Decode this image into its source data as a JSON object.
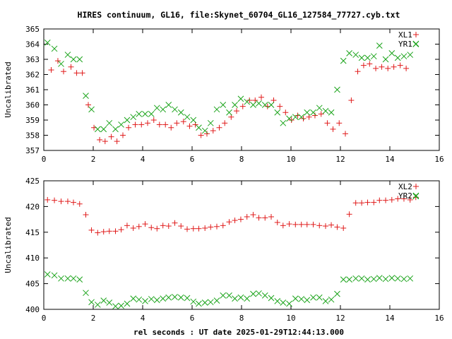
{
  "chart_data": [
    {
      "type": "scatter",
      "title": "HIRES continuum, GL16, file:Skynet_60704_GL16_127584_77727.cyb.txt",
      "ylabel": "Uncalibrated",
      "xlabel": "",
      "xlim": [
        0,
        16
      ],
      "ylim": [
        357,
        365
      ],
      "x_ticks": [
        "0",
        "2",
        "4",
        "6",
        "8",
        "10",
        "12",
        "14",
        "16"
      ],
      "y_ticks": [
        "357",
        "358",
        "359",
        "360",
        "361",
        "362",
        "363",
        "364",
        "365"
      ],
      "legend_position": "top-right",
      "series": [
        {
          "name": "XL1",
          "marker": "plus",
          "color": "#e01b1b",
          "x": [
            0.3,
            0.57,
            0.8,
            1.1,
            1.33,
            1.56,
            1.8,
            2.03,
            2.26,
            2.48,
            2.73,
            2.96,
            3.2,
            3.43,
            3.7,
            3.95,
            4.2,
            4.45,
            4.68,
            4.92,
            5.15,
            5.38,
            5.65,
            5.9,
            6.13,
            6.36,
            6.6,
            6.85,
            7.1,
            7.32,
            7.58,
            7.8,
            8.05,
            8.32,
            8.55,
            8.8,
            9.05,
            9.3,
            9.55,
            9.78,
            10.02,
            10.27,
            10.5,
            10.73,
            10.97,
            11.22,
            11.47,
            11.7,
            11.95,
            12.2,
            12.44,
            12.7,
            12.94,
            13.18,
            13.43,
            13.67,
            13.92,
            14.16,
            14.42,
            14.66
          ],
          "y": [
            362.3,
            362.9,
            362.2,
            362.5,
            362.1,
            362.1,
            360.0,
            358.5,
            357.7,
            357.6,
            357.9,
            357.6,
            358.0,
            358.5,
            358.7,
            358.7,
            358.8,
            359.0,
            358.7,
            358.7,
            358.5,
            358.8,
            358.9,
            358.6,
            358.7,
            358.0,
            358.1,
            358.3,
            358.5,
            358.8,
            359.2,
            359.6,
            359.9,
            360.3,
            360.3,
            360.5,
            359.9,
            360.3,
            359.9,
            359.5,
            359.0,
            359.3,
            359.1,
            359.2,
            359.3,
            359.4,
            358.8,
            358.4,
            358.8,
            358.1,
            360.3,
            362.2,
            362.6,
            362.7,
            362.4,
            362.5,
            362.4,
            362.5,
            362.6,
            362.4
          ]
        },
        {
          "name": "YR1",
          "marker": "cross",
          "color": "#1aa31a",
          "x": [
            0.15,
            0.43,
            0.7,
            0.97,
            1.2,
            1.45,
            1.7,
            1.93,
            2.18,
            2.42,
            2.65,
            2.9,
            3.13,
            3.37,
            3.62,
            3.85,
            4.1,
            4.35,
            4.58,
            4.82,
            5.05,
            5.3,
            5.55,
            5.8,
            6.05,
            6.27,
            6.52,
            6.75,
            7.0,
            7.25,
            7.5,
            7.73,
            7.97,
            8.22,
            8.47,
            8.7,
            8.95,
            9.2,
            9.45,
            9.68,
            9.93,
            10.18,
            10.42,
            10.65,
            10.9,
            11.15,
            11.4,
            11.63,
            11.87,
            12.12,
            12.36,
            12.62,
            12.86,
            13.1,
            13.35,
            13.58,
            13.83,
            14.08,
            14.32,
            14.57,
            14.82,
            15.05
          ],
          "y": [
            364.1,
            363.7,
            362.7,
            363.3,
            363.0,
            363.0,
            360.6,
            359.7,
            358.4,
            358.4,
            358.8,
            358.4,
            358.7,
            359.0,
            359.2,
            359.4,
            359.4,
            359.4,
            359.8,
            359.7,
            360.0,
            359.7,
            359.5,
            359.2,
            359.0,
            358.5,
            358.3,
            358.8,
            359.7,
            360.0,
            359.5,
            360.0,
            360.4,
            360.2,
            360.0,
            360.1,
            360.0,
            360.0,
            359.5,
            358.8,
            359.1,
            359.2,
            359.2,
            359.5,
            359.5,
            359.8,
            359.6,
            359.5,
            361.0,
            362.9,
            363.4,
            363.3,
            363.1,
            363.1,
            363.2,
            363.9,
            363.0,
            363.4,
            363.1,
            363.2,
            363.3,
            364.0
          ]
        }
      ]
    },
    {
      "type": "scatter",
      "title": "",
      "ylabel": "Uncalibrated",
      "xlabel": "rel seconds : UT date 2025-01-29T12:44:13.000",
      "xlim": [
        0,
        16
      ],
      "ylim": [
        400,
        425
      ],
      "x_ticks": [
        "0",
        "2",
        "4",
        "6",
        "8",
        "10",
        "12",
        "14",
        "16"
      ],
      "y_ticks": [
        "400",
        "405",
        "410",
        "415",
        "420",
        "425"
      ],
      "legend_position": "top-right",
      "series": [
        {
          "name": "XL2",
          "marker": "plus",
          "color": "#e01b1b",
          "x": [
            0.15,
            0.43,
            0.7,
            0.97,
            1.2,
            1.45,
            1.7,
            1.93,
            2.18,
            2.42,
            2.65,
            2.9,
            3.13,
            3.37,
            3.62,
            3.85,
            4.1,
            4.35,
            4.58,
            4.82,
            5.05,
            5.3,
            5.55,
            5.8,
            6.05,
            6.27,
            6.52,
            6.75,
            7.0,
            7.25,
            7.5,
            7.73,
            7.97,
            8.22,
            8.47,
            8.7,
            8.95,
            9.2,
            9.45,
            9.68,
            9.93,
            10.18,
            10.42,
            10.65,
            10.9,
            11.15,
            11.4,
            11.63,
            11.87,
            12.12,
            12.36,
            12.62,
            12.86,
            13.1,
            13.35,
            13.58,
            13.83,
            14.08,
            14.32,
            14.57,
            14.82,
            15.05
          ],
          "y": [
            421.3,
            421.2,
            421.0,
            421.0,
            420.8,
            420.5,
            418.4,
            415.4,
            414.9,
            415.1,
            415.2,
            415.2,
            415.5,
            416.3,
            415.8,
            416.1,
            416.6,
            415.9,
            415.7,
            416.3,
            416.2,
            416.8,
            416.2,
            415.6,
            415.7,
            415.7,
            415.8,
            416.0,
            416.1,
            416.3,
            417.0,
            417.3,
            417.5,
            418.0,
            418.4,
            417.8,
            417.8,
            418.0,
            416.9,
            416.3,
            416.6,
            416.5,
            416.5,
            416.5,
            416.5,
            416.3,
            416.2,
            416.4,
            416.0,
            415.8,
            418.5,
            420.7,
            420.7,
            420.8,
            420.8,
            421.2,
            421.2,
            421.3,
            421.5,
            421.5,
            421.3,
            421.8
          ]
        },
        {
          "name": "YR2",
          "marker": "cross",
          "color": "#1aa31a",
          "x": [
            0.15,
            0.43,
            0.7,
            0.97,
            1.2,
            1.45,
            1.7,
            1.93,
            2.18,
            2.42,
            2.65,
            2.9,
            3.13,
            3.37,
            3.62,
            3.85,
            4.1,
            4.35,
            4.58,
            4.82,
            5.05,
            5.3,
            5.55,
            5.8,
            6.05,
            6.27,
            6.52,
            6.75,
            7.0,
            7.25,
            7.5,
            7.73,
            7.97,
            8.22,
            8.47,
            8.7,
            8.95,
            9.2,
            9.45,
            9.68,
            9.93,
            10.18,
            10.42,
            10.65,
            10.9,
            11.15,
            11.4,
            11.63,
            11.87,
            12.12,
            12.36,
            12.62,
            12.86,
            13.1,
            13.35,
            13.58,
            13.83,
            14.08,
            14.32,
            14.57,
            14.82,
            15.05
          ],
          "y": [
            406.8,
            406.6,
            406.0,
            406.0,
            406.0,
            405.8,
            403.2,
            401.4,
            400.9,
            401.7,
            401.3,
            400.6,
            400.7,
            401.1,
            402.1,
            401.9,
            401.6,
            402.0,
            401.8,
            402.1,
            402.3,
            402.4,
            402.3,
            402.2,
            401.5,
            401.1,
            401.3,
            401.4,
            401.7,
            402.7,
            402.7,
            402.1,
            402.3,
            402.1,
            403.0,
            403.1,
            402.7,
            402.2,
            401.6,
            401.3,
            401.1,
            402.1,
            402.0,
            401.8,
            402.3,
            402.3,
            401.6,
            401.9,
            403.0,
            405.8,
            405.8,
            406.0,
            406.0,
            405.8,
            405.9,
            406.1,
            405.9,
            406.1,
            406.0,
            405.9,
            406.0,
            422.0
          ]
        }
      ]
    }
  ]
}
